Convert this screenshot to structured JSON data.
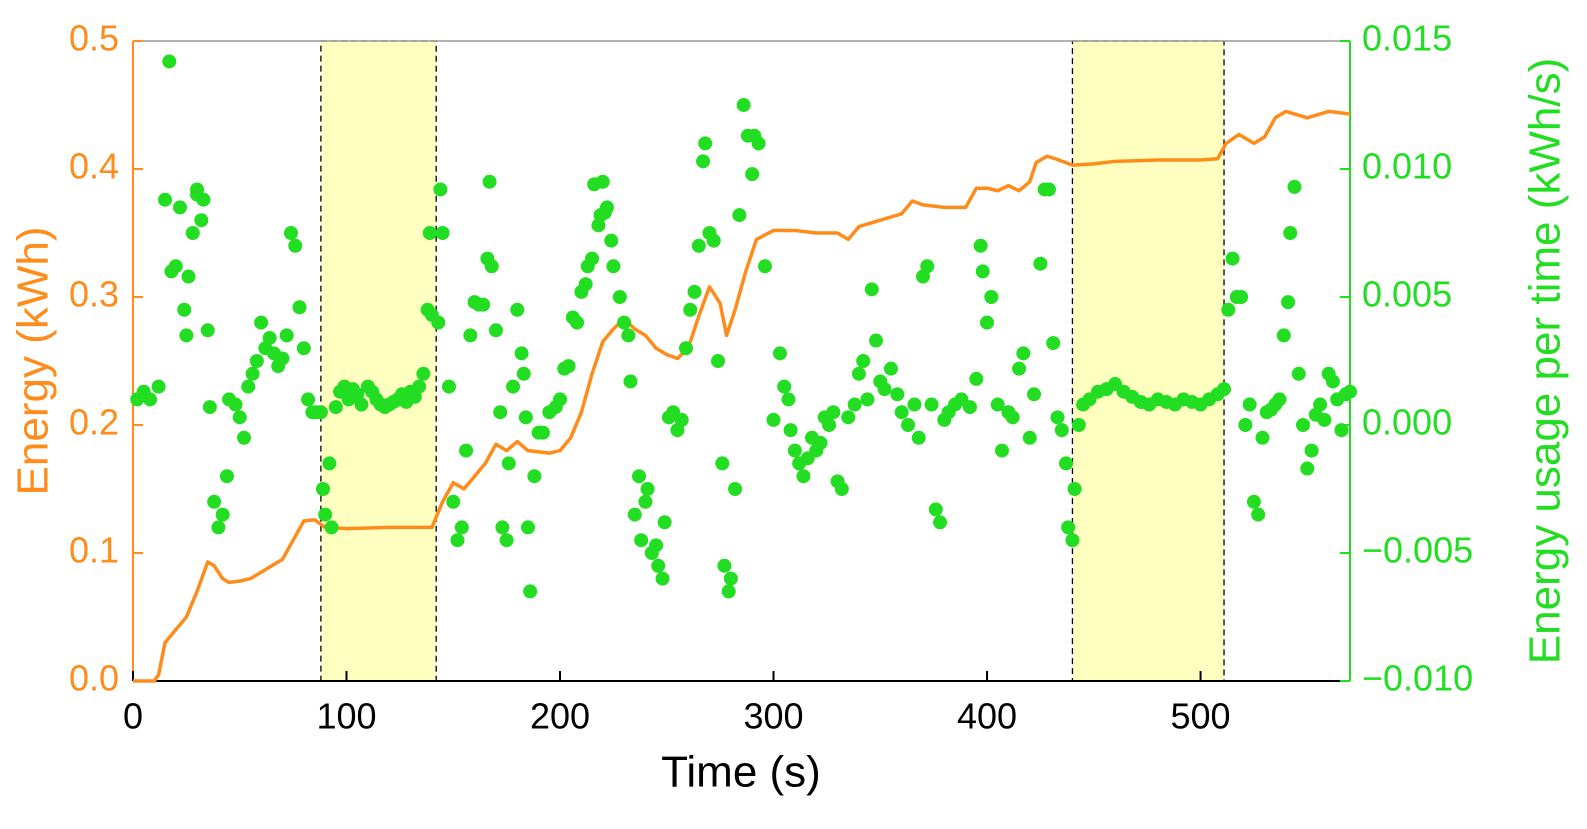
{
  "chart_data": {
    "type": "line",
    "xlabel": "Time (s)",
    "ylabel": "Energy (kWh)",
    "y2label": "Energy usage per time (kWh/s)",
    "xlim": [
      0,
      570
    ],
    "ylim": [
      0,
      0.5
    ],
    "y2lim": [
      -0.01,
      0.015
    ],
    "xticks": [
      0,
      100,
      200,
      300,
      400,
      500
    ],
    "yticks": [
      {
        "value": 0,
        "label": "0.0"
      },
      {
        "value": 0.1,
        "label": "0.1"
      },
      {
        "value": 0.2,
        "label": "0.2"
      },
      {
        "value": 0.3,
        "label": "0.3"
      },
      {
        "value": 0.4,
        "label": "0.4"
      },
      {
        "value": 0.5,
        "label": "0.5"
      }
    ],
    "y2ticks": [
      {
        "value": -0.01,
        "label": "−0.010"
      },
      {
        "value": -0.005,
        "label": "−0.005"
      },
      {
        "value": 0,
        "label": "0.000"
      },
      {
        "value": 0.005,
        "label": "0.005"
      },
      {
        "value": 0.01,
        "label": "0.010"
      },
      {
        "value": 0.015,
        "label": "0.015"
      }
    ],
    "y_axis_color": "#ff8c1a",
    "y2_axis_color": "#22dd22",
    "shaded_regions": [
      [
        88,
        142
      ],
      [
        440,
        511
      ]
    ],
    "shade_color": "#ffffc0",
    "series": [
      {
        "type": "line",
        "color": "#ff8c1a",
        "x": [
          0,
          10,
          12,
          15,
          20,
          25,
          30,
          35,
          38,
          42,
          45,
          50,
          55,
          60,
          65,
          70,
          75,
          80,
          85,
          90,
          100,
          120,
          140,
          145,
          150,
          155,
          160,
          165,
          170,
          175,
          180,
          185,
          195,
          200,
          205,
          210,
          215,
          220,
          225,
          230,
          235,
          240,
          245,
          250,
          255,
          260,
          265,
          270,
          275,
          278,
          282,
          287,
          292,
          300,
          310,
          320,
          330,
          335,
          340,
          350,
          360,
          365,
          370,
          380,
          390,
          395,
          400,
          405,
          410,
          415,
          420,
          423,
          428,
          432,
          440,
          450,
          460,
          480,
          500,
          508,
          512,
          518,
          525,
          530,
          535,
          540,
          550,
          560,
          570
        ],
        "values": [
          0,
          0,
          0.005,
          0.03,
          0.04,
          0.05,
          0.07,
          0.093,
          0.09,
          0.08,
          0.077,
          0.078,
          0.08,
          0.085,
          0.09,
          0.095,
          0.11,
          0.125,
          0.126,
          0.12,
          0.119,
          0.12,
          0.12,
          0.14,
          0.155,
          0.15,
          0.16,
          0.17,
          0.185,
          0.18,
          0.187,
          0.18,
          0.178,
          0.18,
          0.19,
          0.21,
          0.24,
          0.265,
          0.275,
          0.283,
          0.275,
          0.27,
          0.26,
          0.255,
          0.252,
          0.26,
          0.285,
          0.308,
          0.295,
          0.27,
          0.29,
          0.32,
          0.345,
          0.352,
          0.352,
          0.35,
          0.35,
          0.345,
          0.355,
          0.36,
          0.365,
          0.375,
          0.372,
          0.37,
          0.37,
          0.385,
          0.385,
          0.383,
          0.387,
          0.383,
          0.39,
          0.405,
          0.41,
          0.408,
          0.403,
          0.404,
          0.406,
          0.407,
          0.407,
          0.408,
          0.42,
          0.427,
          0.42,
          0.425,
          0.44,
          0.445,
          0.44,
          0.445,
          0.443
        ]
      },
      {
        "type": "scatter",
        "axis": "y2",
        "color": "#22dd22",
        "x": [
          2,
          5,
          8,
          12,
          15,
          17,
          18,
          20,
          22,
          24,
          25,
          26,
          28,
          30,
          30,
          32,
          33,
          35,
          36,
          38,
          40,
          42,
          44,
          45,
          48,
          50,
          52,
          54,
          56,
          58,
          60,
          62,
          64,
          66,
          68,
          70,
          72,
          74,
          76,
          78,
          80,
          82,
          84,
          86,
          88,
          89,
          90,
          92,
          93,
          95,
          97,
          99,
          101,
          103,
          105,
          107,
          110,
          112,
          114,
          116,
          118,
          120,
          122,
          124,
          126,
          128,
          130,
          132,
          134,
          136,
          138,
          139,
          140,
          143,
          144,
          145,
          148,
          150,
          152,
          154,
          156,
          158,
          160,
          162,
          164,
          166,
          167,
          168,
          170,
          172,
          173,
          175,
          176,
          178,
          180,
          182,
          183,
          184,
          185,
          186,
          188,
          190,
          192,
          195,
          198,
          200,
          202,
          204,
          206,
          208,
          210,
          212,
          213,
          215,
          216,
          218,
          219,
          220,
          221,
          222,
          224,
          225,
          228,
          230,
          232,
          233,
          235,
          237,
          238,
          240,
          241,
          243,
          245,
          246,
          248,
          249,
          251,
          253,
          255,
          257,
          259,
          261,
          263,
          265,
          267,
          268,
          270,
          272,
          274,
          276,
          277,
          279,
          280,
          282,
          284,
          286,
          288,
          290,
          291,
          293,
          296,
          300,
          303,
          305,
          307,
          308,
          310,
          312,
          314,
          316,
          318,
          320,
          322,
          324,
          326,
          328,
          330,
          332,
          335,
          338,
          340,
          342,
          344,
          346,
          348,
          350,
          352,
          355,
          358,
          360,
          363,
          366,
          368,
          370,
          372,
          374,
          376,
          378,
          380,
          382,
          385,
          388,
          392,
          395,
          397,
          398,
          400,
          402,
          405,
          407,
          410,
          412,
          415,
          417,
          420,
          422,
          425,
          427,
          429,
          431,
          433,
          435,
          437,
          438,
          440,
          441,
          443,
          445,
          448,
          452,
          456,
          460,
          464,
          468,
          472,
          476,
          480,
          484,
          488,
          492,
          496,
          500,
          504,
          508,
          511,
          513,
          515,
          517,
          519,
          521,
          523,
          525,
          527,
          529,
          531,
          533,
          535,
          537,
          539,
          541,
          542,
          544,
          546,
          548,
          550,
          552,
          554,
          556,
          558,
          560,
          562,
          564,
          566,
          568,
          570
        ],
        "values": [
          0.001,
          0.0013,
          0.001,
          0.0015,
          0.0088,
          0.0142,
          0.006,
          0.0062,
          0.0085,
          0.0045,
          0.0035,
          0.0058,
          0.0075,
          0.009,
          0.0092,
          0.008,
          0.0088,
          0.0037,
          0.0007,
          -0.003,
          -0.004,
          -0.0035,
          -0.002,
          0.001,
          0.0008,
          0.0003,
          -0.0005,
          0.0015,
          0.002,
          0.0025,
          0.004,
          0.003,
          0.0034,
          0.0028,
          0.0023,
          0.0026,
          0.0035,
          0.0075,
          0.007,
          0.0046,
          0.003,
          0.001,
          0.0005,
          0.0005,
          0.0005,
          -0.0025,
          -0.0035,
          -0.0015,
          -0.004,
          0.0007,
          0.0013,
          0.0015,
          0.001,
          0.0014,
          0.0012,
          0.0008,
          0.0015,
          0.0013,
          0.001,
          0.0008,
          0.0007,
          0.0008,
          0.0009,
          0.001,
          0.0012,
          0.0009,
          0.0013,
          0.0011,
          0.0015,
          0.002,
          0.0045,
          0.0075,
          0.0043,
          0.004,
          0.0092,
          0.0075,
          0.0015,
          -0.003,
          -0.0045,
          -0.004,
          -0.001,
          0.0035,
          0.0048,
          0.0047,
          0.0047,
          0.0065,
          0.0095,
          0.0062,
          0.0037,
          0.0005,
          -0.004,
          -0.0045,
          -0.0015,
          0.0015,
          0.0045,
          0.0028,
          0.002,
          0.0003,
          -0.004,
          -0.0065,
          -0.002,
          -0.0003,
          -0.0003,
          0.0005,
          0.0007,
          0.001,
          0.0022,
          0.0023,
          0.0042,
          0.004,
          0.0052,
          0.0055,
          0.0062,
          0.0065,
          0.0094,
          0.0078,
          0.0082,
          0.0095,
          0.0083,
          0.0085,
          0.0072,
          0.0062,
          0.005,
          0.004,
          0.0035,
          0.0017,
          -0.0035,
          -0.002,
          -0.0045,
          -0.003,
          -0.0025,
          -0.005,
          -0.0047,
          -0.0055,
          -0.006,
          -0.0038,
          0.0003,
          0.0005,
          -0.0002,
          0.0002,
          0.003,
          0.0045,
          0.0052,
          0.007,
          0.0103,
          0.011,
          0.0075,
          0.0072,
          0.0025,
          -0.0015,
          -0.0055,
          -0.0065,
          -0.006,
          -0.0025,
          0.0082,
          0.0125,
          0.0113,
          0.0098,
          0.0113,
          0.011,
          0.0062,
          0.0002,
          0.0028,
          0.0015,
          0.001,
          -0.0002,
          -0.001,
          -0.0015,
          -0.002,
          -0.0013,
          -0.0005,
          -0.001,
          -0.0007,
          0.0003,
          0,
          0.0005,
          -0.0022,
          -0.0025,
          0.0003,
          0.0008,
          0.002,
          0.0025,
          0.001,
          0.0053,
          0.0033,
          0.0017,
          0.0014,
          0.0022,
          0.0012,
          0.0005,
          0,
          0.0008,
          -0.0005,
          0.0058,
          0.0062,
          0.0008,
          -0.0033,
          -0.0038,
          0.0002,
          0.0005,
          0.0008,
          0.001,
          0.0007,
          0.0018,
          0.007,
          0.006,
          0.004,
          0.005,
          0.0008,
          -0.001,
          0.0005,
          0.0003,
          0.0022,
          0.0028,
          -0.0005,
          0.0012,
          0.0063,
          0.0092,
          0.0092,
          0.0032,
          0.0003,
          -0.0002,
          -0.0015,
          -0.004,
          -0.0045,
          -0.0025,
          0,
          0.0008,
          0.001,
          0.0013,
          0.0014,
          0.0016,
          0.0013,
          0.0011,
          0.0009,
          0.0008,
          0.001,
          0.0009,
          0.0008,
          0.001,
          0.0009,
          0.0008,
          0.001,
          0.0012,
          0.0014,
          0.0045,
          0.0065,
          0.005,
          0.005,
          0,
          0.0008,
          -0.003,
          -0.0035,
          -0.0005,
          0.0005,
          0.0006,
          0.0008,
          0.001,
          0.0035,
          0.0048,
          0.0075,
          0.0093,
          0.002,
          0,
          -0.0017,
          -0.001,
          0.0004,
          0.0008,
          0.0002,
          0.002,
          0.0017,
          0.001,
          -0.0002,
          0.0012,
          0.0013
        ]
      }
    ]
  }
}
